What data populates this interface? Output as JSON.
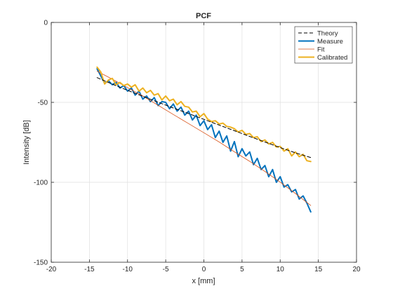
{
  "chart_data": {
    "type": "line",
    "title": "PCF",
    "xlabel": "x [mm]",
    "ylabel": "Intensity [dB]",
    "xlim": [
      -20,
      20
    ],
    "ylim": [
      -150,
      0
    ],
    "xticks": [
      -20,
      -15,
      -10,
      -5,
      0,
      5,
      10,
      15,
      20
    ],
    "yticks": [
      -150,
      -100,
      -50,
      0
    ],
    "x_tick_labels": [
      "-20",
      "-15",
      "-10",
      "-5",
      "0",
      "5",
      "10",
      "15",
      "20"
    ],
    "y_tick_labels": [
      "-150",
      "-100",
      "-50",
      "0"
    ],
    "grid": true,
    "legend_position": "top-right",
    "series": [
      {
        "name": "Theory",
        "color": "#000000",
        "style": "dashed",
        "width": 1,
        "x": [
          -14,
          -12,
          -10,
          -8,
          -6,
          -4,
          -2,
          0,
          2,
          4,
          6,
          8,
          10,
          12,
          14
        ],
        "y": [
          -34.5,
          -38.6,
          -42.5,
          -46.2,
          -49.9,
          -53.5,
          -57.0,
          -60.6,
          -64.2,
          -67.7,
          -71.3,
          -74.8,
          -78.3,
          -81.6,
          -84.5
        ]
      },
      {
        "name": "Measure",
        "color": "#0072bd",
        "style": "solid",
        "width": 2,
        "x": [
          -14,
          -13.5,
          -13,
          -12.5,
          -12,
          -11.5,
          -11,
          -10.5,
          -10,
          -9.5,
          -9,
          -8.5,
          -8,
          -7.5,
          -7,
          -6.5,
          -6,
          -5.5,
          -5,
          -4.5,
          -4,
          -3.5,
          -3,
          -2.5,
          -2,
          -1.5,
          -1,
          -0.5,
          0,
          0.5,
          1,
          1.5,
          2,
          2.5,
          3,
          3.5,
          4,
          4.5,
          5,
          5.5,
          6,
          6.5,
          7,
          7.5,
          8,
          8.5,
          9,
          9.5,
          10,
          10.5,
          11,
          11.5,
          12,
          12.5,
          13,
          13.5,
          14
        ],
        "y": [
          -29.0,
          -33.5,
          -38.0,
          -36.5,
          -39.0,
          -37.5,
          -41.0,
          -39.5,
          -43.0,
          -41.0,
          -45.5,
          -43.0,
          -48.0,
          -46.0,
          -49.5,
          -47.0,
          -52.0,
          -49.5,
          -50.0,
          -54.0,
          -51.0,
          -55.5,
          -53.0,
          -58.0,
          -55.5,
          -61.0,
          -58.0,
          -64.5,
          -61.5,
          -67.0,
          -64.0,
          -72.0,
          -68.0,
          -75.0,
          -71.0,
          -80.5,
          -74.5,
          -84.0,
          -79.0,
          -83.5,
          -81.0,
          -89.0,
          -85.0,
          -92.0,
          -89.5,
          -96.5,
          -92.0,
          -100.0,
          -96.5,
          -103.0,
          -101.5,
          -106.0,
          -104.5,
          -110.5,
          -108.5,
          -113.0,
          -118.5
        ]
      },
      {
        "name": "Fit",
        "color": "#d95319",
        "style": "solid",
        "width": 0.8,
        "x": [
          -14,
          -12,
          -10,
          -8,
          -6,
          -4,
          -2,
          0,
          2,
          4,
          6,
          8,
          10,
          12,
          14
        ],
        "y": [
          -30.5,
          -35.5,
          -40.8,
          -46.0,
          -51.8,
          -57.6,
          -63.3,
          -69.0,
          -74.8,
          -80.9,
          -86.9,
          -93.2,
          -99.9,
          -107.0,
          -114.5
        ]
      },
      {
        "name": "Calibrated",
        "color": "#edb120",
        "style": "solid",
        "width": 2,
        "x": [
          -14,
          -13.5,
          -13,
          -12.5,
          -12,
          -11.5,
          -11,
          -10.5,
          -10,
          -9.5,
          -9,
          -8.5,
          -8,
          -7.5,
          -7,
          -6.5,
          -6,
          -5.5,
          -5,
          -4.5,
          -4,
          -3.5,
          -3,
          -2.5,
          -2,
          -1.5,
          -1,
          -0.5,
          0,
          0.5,
          1,
          1.5,
          2,
          2.5,
          3,
          3.5,
          4,
          4.5,
          5,
          5.5,
          6,
          6.5,
          7,
          7.5,
          8,
          8.5,
          9,
          9.5,
          10,
          10.5,
          11,
          11.5,
          12,
          12.5,
          13,
          13.5,
          14
        ],
        "y": [
          -28.0,
          -31.0,
          -38.5,
          -36.0,
          -35.0,
          -39.0,
          -37.5,
          -39.5,
          -38.5,
          -40.5,
          -39.0,
          -43.0,
          -41.0,
          -44.0,
          -42.5,
          -45.5,
          -44.5,
          -48.5,
          -46.0,
          -49.0,
          -48.0,
          -51.5,
          -49.5,
          -52.5,
          -53.0,
          -56.0,
          -55.5,
          -59.0,
          -57.0,
          -60.5,
          -62.0,
          -61.5,
          -63.5,
          -63.0,
          -65.0,
          -65.5,
          -66.5,
          -68.5,
          -67.5,
          -70.0,
          -69.5,
          -72.0,
          -71.5,
          -74.5,
          -73.5,
          -76.0,
          -75.0,
          -78.0,
          -77.5,
          -80.5,
          -79.0,
          -83.5,
          -81.0,
          -84.0,
          -82.5,
          -86.5,
          -87.0
        ]
      }
    ]
  }
}
